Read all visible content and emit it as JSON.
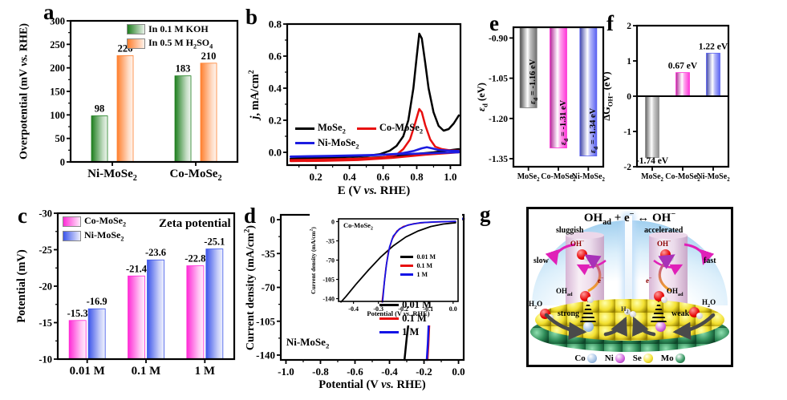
{
  "panel_letters": {
    "a": "a",
    "b": "b",
    "c": "c",
    "d": "d",
    "e": "e",
    "f": "f",
    "g": "g"
  },
  "chart_data": [
    {
      "panel": "a",
      "type": "bar",
      "ylabel": "Overpotential (mV *vs.* RHE)",
      "ylim": [
        0,
        300
      ],
      "yticks": [
        0,
        50,
        100,
        150,
        200,
        250,
        300
      ],
      "ytick_labels": [
        "0",
        "50",
        "100",
        "150",
        "200",
        "250",
        "300"
      ],
      "categories": [
        "Ni-MoSe~2~",
        "Co-MoSe~2~"
      ],
      "series": [
        {
          "name": "In 0.1 M KOH",
          "color": "#1e7e1e",
          "values": [
            98,
            183
          ]
        },
        {
          "name": "In 0.5 M H~2~SO~4~",
          "color": "#ff7f2e",
          "values": [
            226,
            210
          ]
        }
      ],
      "bar_labels": [
        [
          "98",
          "183"
        ],
        [
          "226",
          "210"
        ]
      ],
      "bar_style": "fade",
      "base": "bottom",
      "legend": true
    },
    {
      "panel": "b",
      "type": "line",
      "ylabel": "*j*, mA/cm^2^",
      "xlabel": "E (V *vs.* RHE)",
      "ylim": [
        -0.08,
        0.8
      ],
      "xlim": [
        0.03,
        1.06
      ],
      "yticks": [
        0,
        0.2,
        0.4,
        0.6,
        0.8
      ],
      "ytick_labels": [
        "0.0",
        "0.2",
        "0.4",
        "0.6",
        "0.8"
      ],
      "xticks": [
        0.2,
        0.4,
        0.6,
        0.8,
        1
      ],
      "xtick_labels": [
        "0.2",
        "0.4",
        "0.6",
        "0.8",
        "1.0"
      ],
      "series": [
        {
          "name": "MoSe~2~",
          "color": "#000000",
          "segments": [
            [
              [
                0.05,
                -0.04
              ],
              [
                0.2,
                -0.035
              ],
              [
                0.35,
                -0.03
              ],
              [
                0.5,
                -0.022
              ],
              [
                0.58,
                -0.012
              ],
              [
                0.64,
                0.01
              ],
              [
                0.68,
                0.04
              ],
              [
                0.72,
                0.1
              ],
              [
                0.75,
                0.2
              ],
              [
                0.78,
                0.4
              ],
              [
                0.8,
                0.6
              ],
              [
                0.815,
                0.74
              ],
              [
                0.83,
                0.71
              ],
              [
                0.85,
                0.56
              ],
              [
                0.87,
                0.4
              ],
              [
                0.9,
                0.25
              ],
              [
                0.93,
                0.165
              ],
              [
                0.96,
                0.135
              ],
              [
                0.99,
                0.145
              ],
              [
                1.02,
                0.18
              ],
              [
                1.05,
                0.23
              ]
            ],
            [
              [
                1.05,
                0.02
              ],
              [
                0.9,
                0
              ],
              [
                0.75,
                -0.015
              ],
              [
                0.6,
                -0.03
              ],
              [
                0.4,
                -0.04
              ],
              [
                0.2,
                -0.047
              ],
              [
                0.05,
                -0.05
              ]
            ]
          ]
        },
        {
          "name": "Co-MoSe~2~",
          "color": "#e81010",
          "segments": [
            [
              [
                0.05,
                -0.048
              ],
              [
                0.25,
                -0.045
              ],
              [
                0.45,
                -0.04
              ],
              [
                0.6,
                -0.032
              ],
              [
                0.68,
                -0.015
              ],
              [
                0.72,
                0.02
              ],
              [
                0.76,
                0.08
              ],
              [
                0.79,
                0.18
              ],
              [
                0.815,
                0.27
              ],
              [
                0.83,
                0.25
              ],
              [
                0.85,
                0.17
              ],
              [
                0.88,
                0.08
              ],
              [
                0.91,
                0.035
              ],
              [
                0.95,
                0.02
              ],
              [
                1,
                0.012
              ],
              [
                1.05,
                0.01
              ]
            ],
            [
              [
                1.05,
                0
              ],
              [
                0.85,
                -0.015
              ],
              [
                0.65,
                -0.035
              ],
              [
                0.45,
                -0.048
              ],
              [
                0.25,
                -0.053
              ],
              [
                0.05,
                -0.055
              ]
            ]
          ]
        },
        {
          "name": "Ni-MoSe~2~",
          "color": "#1c1ce0",
          "segments": [
            [
              [
                0.05,
                -0.028
              ],
              [
                0.3,
                -0.024
              ],
              [
                0.55,
                -0.018
              ],
              [
                0.7,
                -0.008
              ],
              [
                0.78,
                0.008
              ],
              [
                0.83,
                0.025
              ],
              [
                0.86,
                0.032
              ],
              [
                0.89,
                0.025
              ],
              [
                0.93,
                0.015
              ],
              [
                1,
                0.01
              ],
              [
                1.05,
                0.008
              ]
            ],
            [
              [
                1.05,
                0
              ],
              [
                0.8,
                -0.008
              ],
              [
                0.55,
                -0.016
              ],
              [
                0.3,
                -0.022
              ],
              [
                0.05,
                -0.026
              ]
            ]
          ]
        }
      ],
      "legend": true
    },
    {
      "panel": "c",
      "type": "bar",
      "ylabel": "Potential (mV)",
      "title": "Zeta potential",
      "ylim": [
        -10,
        -30
      ],
      "yticks": [
        -10,
        -15,
        -20,
        -25,
        -30
      ],
      "ytick_labels": [
        "-10",
        "-15",
        "-20",
        "-25",
        "-30"
      ],
      "categories": [
        "0.01 M",
        "0.1 M",
        "1 M"
      ],
      "series": [
        {
          "name": "Co-MoSe~2~",
          "color": "#ff2bd6",
          "values": [
            -15.3,
            -21.4,
            -22.8
          ]
        },
        {
          "name": "Ni-MoSe~2~",
          "color": "#3c55ea",
          "values": [
            -16.9,
            -23.6,
            -25.1
          ]
        }
      ],
      "bar_labels": [
        [
          "-15.3",
          "-21.4",
          "-22.8"
        ],
        [
          "-16.9",
          "-23.6",
          "-25.1"
        ]
      ],
      "bar_style": "fade",
      "base": "bottom",
      "legend": true
    },
    {
      "panel": "d",
      "type": "line",
      "ylabel": "Current density (mA/cm^2^)",
      "xlabel": "Potential (V *vs.* RHE)",
      "inner_label": "Ni-MoSe~2~",
      "ylim": [
        -145,
        5
      ],
      "xlim": [
        -1.03,
        0.03
      ],
      "yticks": [
        0,
        -35,
        -70,
        -105,
        -140
      ],
      "ytick_labels": [
        "0",
        "-35",
        "-70",
        "-105",
        "-140"
      ],
      "xticks": [
        -1,
        -0.8,
        -0.6,
        -0.4,
        -0.2,
        0
      ],
      "xtick_labels": [
        "-1.0",
        "-0.8",
        "-0.6",
        "-0.4",
        "-0.2",
        "0.0"
      ],
      "series": [
        {
          "name": "0.01 M",
          "color": "#000000",
          "segments": [
            [
              [
                0.03,
                0.5
              ],
              [
                -0.02,
                -0.3
              ],
              [
                -0.07,
                -1.5
              ],
              [
                -0.11,
                -4
              ],
              [
                -0.15,
                -8
              ],
              [
                -0.18,
                -14
              ],
              [
                -0.2,
                -21
              ],
              [
                -0.22,
                -31
              ],
              [
                -0.24,
                -46
              ],
              [
                -0.26,
                -67
              ],
              [
                -0.28,
                -93
              ],
              [
                -0.3,
                -122
              ],
              [
                -0.313,
                -145
              ]
            ]
          ]
        },
        {
          "name": "0.1 M",
          "color": "#e81010",
          "segments": [
            [
              [
                0.03,
                1
              ],
              [
                -0.02,
                0.3
              ],
              [
                -0.06,
                -0.5
              ],
              [
                -0.09,
                -2.5
              ],
              [
                -0.11,
                -6
              ],
              [
                -0.125,
                -12
              ],
              [
                -0.14,
                -24
              ],
              [
                -0.15,
                -44
              ],
              [
                -0.16,
                -72
              ],
              [
                -0.168,
                -102
              ],
              [
                -0.175,
                -130
              ],
              [
                -0.18,
                -145
              ]
            ]
          ]
        },
        {
          "name": "1 M",
          "color": "#1414e6",
          "segments": [
            [
              [
                0.03,
                1
              ],
              [
                -0.03,
                0.3
              ],
              [
                -0.07,
                -1
              ],
              [
                -0.1,
                -3.5
              ],
              [
                -0.12,
                -9
              ],
              [
                -0.135,
                -18
              ],
              [
                -0.15,
                -36
              ],
              [
                -0.16,
                -62
              ],
              [
                -0.17,
                -95
              ],
              [
                -0.178,
                -128
              ],
              [
                -0.184,
                -145
              ]
            ]
          ]
        }
      ],
      "legend": true
    },
    {
      "panel": "di",
      "type": "line",
      "ylabel": "Current density (mA/cm^2^)",
      "xlabel": "Potential (V *vs.* RHE)",
      "inner_label": "Co-MoSe~2~",
      "ylim": [
        -145,
        5
      ],
      "xlim": [
        -0.46,
        0.02
      ],
      "yticks": [
        0,
        -35,
        -70,
        -105,
        -140
      ],
      "ytick_labels": [
        "0",
        "-35",
        "-70",
        "-105",
        "-140"
      ],
      "xticks": [
        -0.4,
        -0.3,
        -0.2,
        -0.1,
        0
      ],
      "xtick_labels": [
        "-0.4",
        "-0.3",
        "-0.2",
        "-0.1",
        "0.0"
      ],
      "series": [
        {
          "name": "0.01 M",
          "color": "#000000",
          "segments": [
            [
              [
                0.01,
                -2
              ],
              [
                -0.04,
                -4.5
              ],
              [
                -0.09,
                -9
              ],
              [
                -0.14,
                -17
              ],
              [
                -0.19,
                -28
              ],
              [
                -0.24,
                -44
              ],
              [
                -0.29,
                -64
              ],
              [
                -0.34,
                -88
              ],
              [
                -0.39,
                -114
              ],
              [
                -0.43,
                -136
              ],
              [
                -0.45,
                -146
              ]
            ]
          ]
        },
        {
          "name": "0.1 M",
          "color": "#e81010",
          "segments": [
            [
              [
                0.01,
                0.5
              ],
              [
                -0.06,
                -0.5
              ],
              [
                -0.11,
                -1.5
              ],
              [
                -0.16,
                -4
              ],
              [
                -0.2,
                -9
              ],
              [
                -0.225,
                -17
              ],
              [
                -0.245,
                -32
              ],
              [
                -0.26,
                -55
              ],
              [
                -0.27,
                -85
              ],
              [
                -0.278,
                -118
              ],
              [
                -0.285,
                -146
              ]
            ]
          ]
        },
        {
          "name": "1 M",
          "color": "#1414e6",
          "segments": [
            [
              [
                0.01,
                0.5
              ],
              [
                -0.07,
                -0.5
              ],
              [
                -0.13,
                -2
              ],
              [
                -0.18,
                -6
              ],
              [
                -0.215,
                -13
              ],
              [
                -0.24,
                -26
              ],
              [
                -0.255,
                -46
              ],
              [
                -0.267,
                -76
              ],
              [
                -0.276,
                -110
              ],
              [
                -0.283,
                -146
              ]
            ]
          ]
        }
      ],
      "legend": true
    },
    {
      "panel": "e",
      "type": "bar",
      "ylabel": "*ε*~d~ (eV)",
      "ylim": [
        -1.38,
        -0.86
      ],
      "yticks": [
        -0.9,
        -1.05,
        -1.2,
        -1.35
      ],
      "ytick_labels": [
        "-0.90",
        "-1.05",
        "-1.20",
        "-1.35"
      ],
      "categories": [
        "MoSe~2~",
        "Co-MoSe~2~",
        "Ni-MoSe~2~"
      ],
      "series": [
        {
          "name": "ed",
          "colors": [
            "#707070",
            "#ff35d8",
            "#5a62f2"
          ],
          "values": [
            -1.16,
            -1.31,
            -1.34
          ]
        }
      ],
      "rot_labels": [
        "*ε*~d~ = -1.16 eV",
        "*ε*~d~ = -1.31 eV",
        "*ε*~d~ = -1.34 eV"
      ],
      "bar_style": "cyl",
      "base": "top"
    },
    {
      "panel": "f",
      "type": "bar",
      "ylabel": "ΔG~OH⁻~ (eV)",
      "ylim": [
        -2,
        2
      ],
      "yticks": [
        2,
        1,
        0,
        -1,
        -2
      ],
      "ytick_labels": [
        "2",
        "1",
        "0",
        "-1",
        "-2"
      ],
      "categories": [
        "MoSe~2~",
        "Co-MoSe~2~",
        "Ni-MoSe~2~"
      ],
      "series": [
        {
          "name": "dG",
          "colors": [
            "#8c8c8c",
            "#ff35d8",
            "#5a62f2"
          ],
          "values": [
            -1.74,
            0.67,
            1.22
          ]
        }
      ],
      "bar_labels": [
        "-1.74 eV",
        "0.67 eV",
        "1.22 eV"
      ],
      "bar_style": "cyl",
      "base": 0,
      "zero_line": true
    }
  ],
  "panel_g": {
    "title": "OH~ad~ + e^−^ ↔ OH^−^",
    "left_regime": "sluggish",
    "right_regime": "accelerated",
    "left_rate": "slow",
    "right_rate": "fast",
    "oh_minus": "OH^−^",
    "electron": "e^−^",
    "oh_ad": "OH~ad~",
    "left_bond": "strong",
    "right_bond": "weak",
    "h2": "H~2~",
    "h2o": "H~2~O",
    "legend": [
      {
        "name": "Co",
        "color": "#a9c6e8",
        "dark": "#5f8cc0"
      },
      {
        "name": "Ni",
        "color": "#d46ae0",
        "dark": "#8a20a0"
      },
      {
        "name": "Se",
        "color": "#f5e53a",
        "dark": "#b09a00"
      },
      {
        "name": "Mo",
        "color": "#3f9e6a",
        "dark": "#14512f"
      }
    ]
  }
}
